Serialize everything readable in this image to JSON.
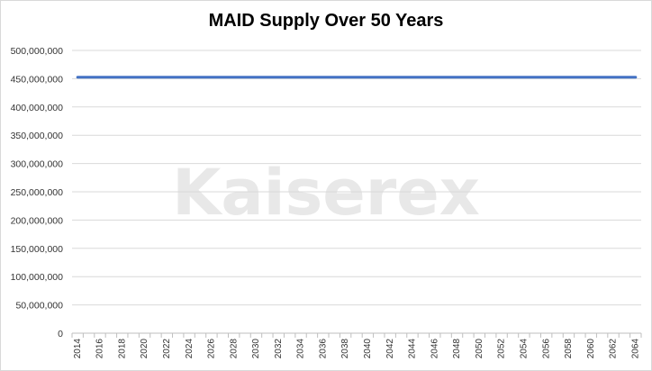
{
  "chart_data": {
    "type": "line",
    "title": "MAID Supply Over 50 Years",
    "xlabel": "",
    "ylabel": "",
    "x": [
      "2014",
      "2015",
      "2016",
      "2017",
      "2018",
      "2019",
      "2020",
      "2021",
      "2022",
      "2023",
      "2024",
      "2025",
      "2026",
      "2027",
      "2028",
      "2029",
      "2030",
      "2031",
      "2032",
      "2033",
      "2034",
      "2035",
      "2036",
      "2037",
      "2038",
      "2039",
      "2040",
      "2041",
      "2042",
      "2043",
      "2044",
      "2045",
      "2046",
      "2047",
      "2048",
      "2049",
      "2050",
      "2051",
      "2052",
      "2053",
      "2054",
      "2055",
      "2056",
      "2057",
      "2058",
      "2059",
      "2060",
      "2061",
      "2062",
      "2063",
      "2064"
    ],
    "x_tick_labels": [
      "2014",
      "2016",
      "2018",
      "2020",
      "2022",
      "2024",
      "2026",
      "2028",
      "2030",
      "2032",
      "2034",
      "2036",
      "2038",
      "2040",
      "2042",
      "2044",
      "2046",
      "2048",
      "2050",
      "2052",
      "2054",
      "2056",
      "2058",
      "2060",
      "2062",
      "2064"
    ],
    "series": [
      {
        "color": "#4472c4",
        "values": [
          452552412,
          452552412,
          452552412,
          452552412,
          452552412,
          452552412,
          452552412,
          452552412,
          452552412,
          452552412,
          452552412,
          452552412,
          452552412,
          452552412,
          452552412,
          452552412,
          452552412,
          452552412,
          452552412,
          452552412,
          452552412,
          452552412,
          452552412,
          452552412,
          452552412,
          452552412,
          452552412,
          452552412,
          452552412,
          452552412,
          452552412,
          452552412,
          452552412,
          452552412,
          452552412,
          452552412,
          452552412,
          452552412,
          452552412,
          452552412,
          452552412,
          452552412,
          452552412,
          452552412,
          452552412,
          452552412,
          452552412,
          452552412,
          452552412,
          452552412,
          452552412
        ]
      }
    ],
    "y_tick_labels": [
      "0",
      "50,000,000",
      "100,000,000",
      "150,000,000",
      "200,000,000",
      "250,000,000",
      "300,000,000",
      "350,000,000",
      "400,000,000",
      "450,000,000",
      "500,000,000"
    ],
    "ylim": [
      0,
      500000000
    ],
    "grid": true,
    "legend": "none",
    "watermark": "Kaiserex"
  }
}
